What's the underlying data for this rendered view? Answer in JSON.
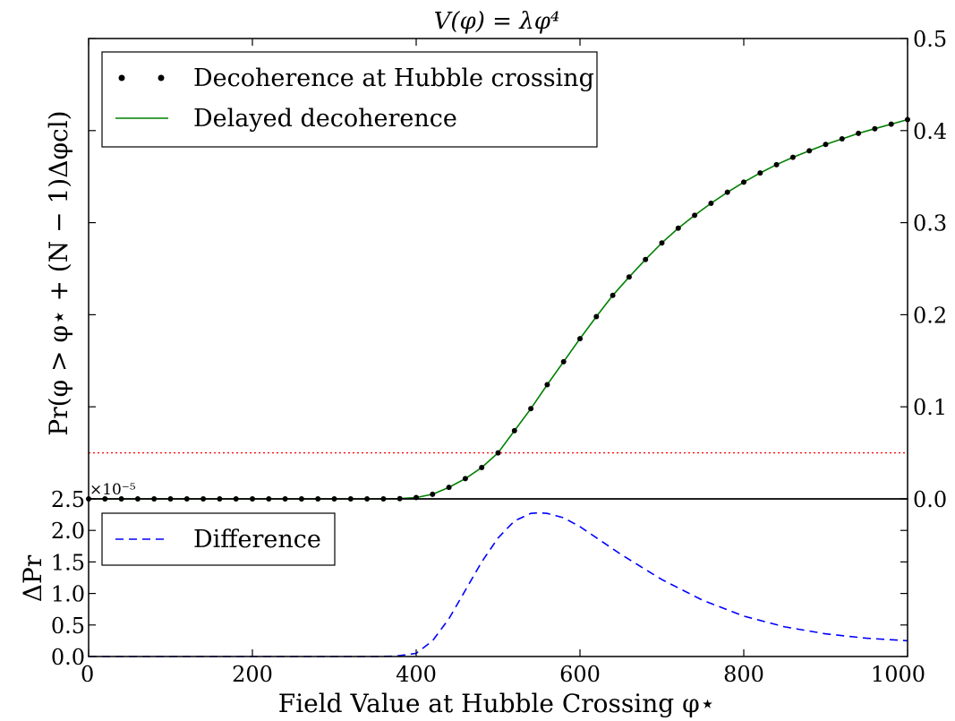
{
  "chart_data": [
    {
      "type": "scatter",
      "panel": "top",
      "title": "V(φ) = λφ⁴",
      "ylabel": "Pr(φ > φ⋆ + (N − 1)Δφcl)",
      "xlim": [
        0,
        1000
      ],
      "ylim": [
        0,
        0.5
      ],
      "y_axis_side": "right",
      "y_ticks": [
        "0.0",
        "0.1",
        "0.2",
        "0.3",
        "0.4",
        "0.5"
      ],
      "grid": false,
      "legend_position": "top-left",
      "threshold_line": {
        "y": 0.05,
        "color": "#ff0000",
        "style": "dotted"
      },
      "series": [
        {
          "name": "Decoherence at Hubble crossing",
          "style": "dots",
          "color": "#000000",
          "x": [
            0,
            20,
            40,
            60,
            80,
            100,
            120,
            140,
            160,
            180,
            200,
            220,
            240,
            260,
            280,
            300,
            320,
            340,
            360,
            380,
            400,
            420,
            440,
            460,
            480,
            500,
            520,
            540,
            560,
            580,
            600,
            620,
            640,
            660,
            680,
            700,
            720,
            740,
            760,
            780,
            800,
            820,
            840,
            860,
            880,
            900,
            920,
            940,
            960,
            980,
            1000
          ],
          "y": [
            0,
            0,
            0,
            0,
            0,
            0,
            0,
            0,
            0,
            0,
            0,
            0,
            0,
            0,
            0,
            0,
            0,
            0,
            0,
            0.0003,
            0.0015,
            0.005,
            0.0125,
            0.022,
            0.034,
            0.05,
            0.074,
            0.098,
            0.124,
            0.149,
            0.174,
            0.198,
            0.221,
            0.241,
            0.26,
            0.278,
            0.294,
            0.308,
            0.321,
            0.333,
            0.344,
            0.354,
            0.363,
            0.371,
            0.378,
            0.385,
            0.391,
            0.397,
            0.402,
            0.407,
            0.412
          ]
        },
        {
          "name": "Delayed decoherence",
          "style": "line",
          "color": "#008000",
          "x": [
            0,
            20,
            40,
            60,
            80,
            100,
            120,
            140,
            160,
            180,
            200,
            220,
            240,
            260,
            280,
            300,
            320,
            340,
            360,
            380,
            400,
            420,
            440,
            460,
            480,
            500,
            520,
            540,
            560,
            580,
            600,
            620,
            640,
            660,
            680,
            700,
            720,
            740,
            760,
            780,
            800,
            820,
            840,
            860,
            880,
            900,
            920,
            940,
            960,
            980,
            1000
          ],
          "y": [
            0,
            0,
            0,
            0,
            0,
            0,
            0,
            0,
            0,
            0,
            0,
            0,
            0,
            0,
            0,
            0,
            0,
            0,
            0,
            0.0003,
            0.0015,
            0.005,
            0.0125,
            0.022,
            0.034,
            0.05,
            0.074,
            0.098,
            0.124,
            0.149,
            0.174,
            0.198,
            0.221,
            0.241,
            0.26,
            0.278,
            0.294,
            0.308,
            0.321,
            0.333,
            0.344,
            0.354,
            0.363,
            0.371,
            0.378,
            0.385,
            0.391,
            0.397,
            0.402,
            0.407,
            0.412
          ]
        }
      ],
      "legend": [
        "Decoherence at Hubble crossing",
        "Delayed decoherence"
      ]
    },
    {
      "type": "line",
      "panel": "bottom",
      "xlabel": "Field Value at Hubble Crossing φ⋆",
      "ylabel": "ΔPr",
      "xlim": [
        0,
        1000
      ],
      "ylim": [
        0,
        2.5
      ],
      "y_offset_label": "×10⁻⁵",
      "x_ticks": [
        "0",
        "200",
        "400",
        "600",
        "800",
        "1000"
      ],
      "y_ticks": [
        "0.0",
        "0.5",
        "1.0",
        "1.5",
        "2.0",
        "2.5"
      ],
      "grid": false,
      "legend_position": "top-left",
      "series": [
        {
          "name": "Difference",
          "style": "dashed",
          "color": "#0000ff",
          "x": [
            0,
            100,
            200,
            300,
            350,
            375,
            400,
            420,
            440,
            460,
            480,
            500,
            520,
            540,
            550,
            560,
            580,
            600,
            650,
            700,
            750,
            800,
            850,
            900,
            950,
            1000
          ],
          "y": [
            0,
            0,
            0,
            0,
            0,
            0.005,
            0.05,
            0.25,
            0.6,
            1.05,
            1.5,
            1.88,
            2.15,
            2.27,
            2.28,
            2.27,
            2.2,
            2.06,
            1.62,
            1.22,
            0.89,
            0.64,
            0.47,
            0.36,
            0.29,
            0.25
          ]
        }
      ],
      "legend": [
        "Difference"
      ]
    }
  ]
}
